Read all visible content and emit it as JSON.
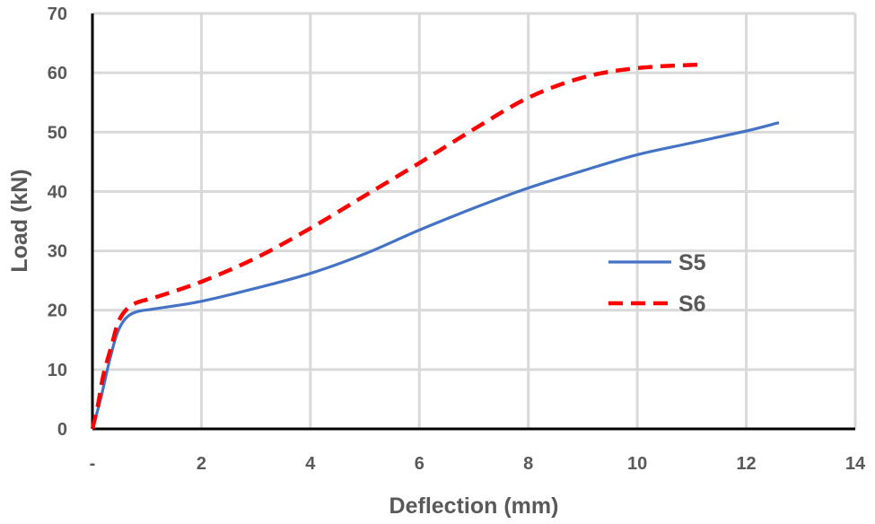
{
  "chart_data": {
    "type": "line",
    "title": "",
    "xlabel": "Deflection (mm)",
    "ylabel": "Load (kN)",
    "xlim": [
      0,
      14
    ],
    "ylim": [
      0,
      70
    ],
    "x_ticks": [
      {
        "value": 0,
        "label": "-"
      },
      {
        "value": 2,
        "label": "2"
      },
      {
        "value": 4,
        "label": "4"
      },
      {
        "value": 6,
        "label": "6"
      },
      {
        "value": 8,
        "label": "8"
      },
      {
        "value": 10,
        "label": "10"
      },
      {
        "value": 12,
        "label": "12"
      },
      {
        "value": 14,
        "label": "14"
      }
    ],
    "y_ticks": [
      {
        "value": 0,
        "label": "0"
      },
      {
        "value": 10,
        "label": "10"
      },
      {
        "value": 20,
        "label": "20"
      },
      {
        "value": 30,
        "label": "30"
      },
      {
        "value": 40,
        "label": "40"
      },
      {
        "value": 50,
        "label": "50"
      },
      {
        "value": 60,
        "label": "60"
      },
      {
        "value": 70,
        "label": "70"
      }
    ],
    "grid": true,
    "legend_position": "middle-right",
    "series": [
      {
        "name": "S5",
        "color": "#4472C4",
        "dash": "solid",
        "points": [
          [
            0,
            0
          ],
          [
            0.15,
            5
          ],
          [
            0.3,
            11
          ],
          [
            0.45,
            16
          ],
          [
            0.6,
            18.5
          ],
          [
            0.8,
            19.7
          ],
          [
            1.2,
            20.3
          ],
          [
            2.0,
            21.5
          ],
          [
            3.0,
            23.7
          ],
          [
            4.0,
            26.2
          ],
          [
            5.0,
            29.5
          ],
          [
            6.0,
            33.5
          ],
          [
            7.0,
            37.2
          ],
          [
            8.0,
            40.6
          ],
          [
            9.0,
            43.5
          ],
          [
            10.0,
            46.2
          ],
          [
            11.0,
            48.2
          ],
          [
            12.0,
            50.2
          ],
          [
            12.6,
            51.6
          ]
        ]
      },
      {
        "name": "S6",
        "color": "#FF0000",
        "dash": "dashed",
        "points": [
          [
            0,
            0
          ],
          [
            0.1,
            4
          ],
          [
            0.2,
            9
          ],
          [
            0.35,
            14
          ],
          [
            0.5,
            18.5
          ],
          [
            0.75,
            21
          ],
          [
            1.2,
            22.3
          ],
          [
            2.0,
            24.8
          ],
          [
            3.0,
            28.8
          ],
          [
            4.0,
            33.8
          ],
          [
            5.0,
            39.3
          ],
          [
            6.0,
            44.8
          ],
          [
            7.0,
            50.5
          ],
          [
            8.0,
            55.8
          ],
          [
            9.0,
            59.2
          ],
          [
            10.0,
            60.8
          ],
          [
            11.2,
            61.4
          ]
        ]
      }
    ]
  }
}
